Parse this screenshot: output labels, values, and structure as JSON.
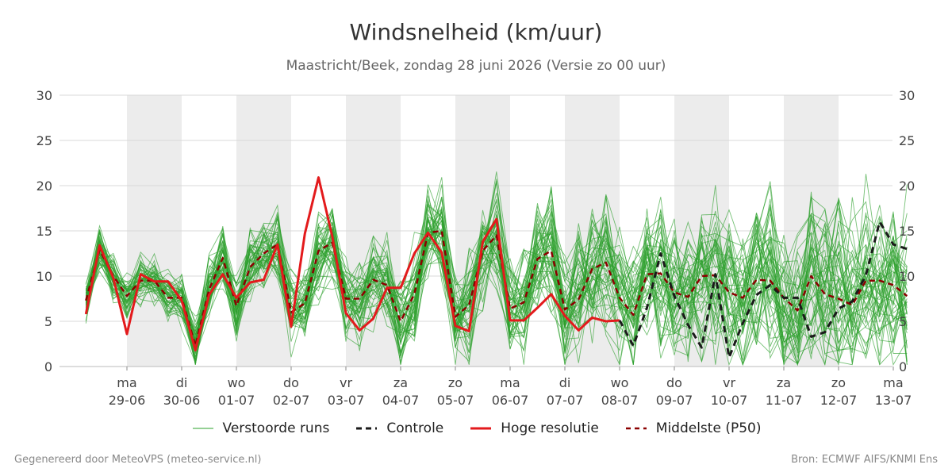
{
  "title": "Windsnelheid (km/uur)",
  "subtitle": "Maastricht/Beek, zondag 28 juni 2026 (Versie zo 00 uur)",
  "footer": {
    "left": "Gegenereerd door MeteoVPS (meteo-service.nl)",
    "right": "Bron: ECMWF AIFS/KNMI Ens"
  },
  "colors": {
    "ensemble": "#2ca02c",
    "control": "#1a1a1a",
    "hires": "#e31a1c",
    "median": "#8b0000",
    "weekend_band": "#ececec",
    "grid": "#d9d9d9"
  },
  "legend": [
    {
      "label": "Verstoorde runs",
      "style": "ensemble"
    },
    {
      "label": "Controle",
      "style": "control"
    },
    {
      "label": "Hoge resolutie",
      "style": "hires"
    },
    {
      "label": "Middelste (P50)",
      "style": "median"
    }
  ],
  "chart_data": {
    "type": "line",
    "xlim": [
      -0.75,
      14.5
    ],
    "ylim": [
      0,
      30
    ],
    "y_ticks": [
      0,
      5,
      10,
      15,
      20,
      25,
      30
    ],
    "x_ticks": [
      {
        "x": 0.0,
        "day": "ma",
        "date": "29-06"
      },
      {
        "x": 1.0,
        "day": "di",
        "date": "30-06"
      },
      {
        "x": 2.0,
        "day": "wo",
        "date": "01-07"
      },
      {
        "x": 3.0,
        "day": "do",
        "date": "02-07"
      },
      {
        "x": 4.0,
        "day": "vr",
        "date": "03-07"
      },
      {
        "x": 5.0,
        "day": "za",
        "date": "04-07"
      },
      {
        "x": 6.0,
        "day": "zo",
        "date": "05-07"
      },
      {
        "x": 7.0,
        "day": "ma",
        "date": "06-07"
      },
      {
        "x": 8.0,
        "day": "di",
        "date": "07-07"
      },
      {
        "x": 9.0,
        "day": "wo",
        "date": "08-07"
      },
      {
        "x": 10.0,
        "day": "do",
        "date": "09-07"
      },
      {
        "x": 11.0,
        "day": "vr",
        "date": "10-07"
      },
      {
        "x": 12.0,
        "day": "za",
        "date": "11-07"
      },
      {
        "x": 13.0,
        "day": "zo",
        "date": "12-07"
      },
      {
        "x": 14.0,
        "day": "ma",
        "date": "13-07"
      }
    ],
    "shaded_bands": [
      [
        0.0,
        1.0
      ],
      [
        2.0,
        3.0
      ],
      [
        4.0,
        5.0
      ],
      [
        6.0,
        7.0
      ],
      [
        8.0,
        9.0
      ],
      [
        10.0,
        11.0
      ],
      [
        12.0,
        13.0
      ]
    ],
    "series": [
      {
        "name": "Hoge resolutie",
        "style": "hires",
        "x": [
          -0.75,
          -0.5,
          -0.25,
          0.0,
          0.25,
          0.5,
          0.75,
          1.0,
          1.25,
          1.5,
          1.75,
          2.0,
          2.25,
          2.5,
          2.75,
          3.0,
          3.25,
          3.5,
          3.75,
          4.0,
          4.25,
          4.5,
          4.75,
          5.0,
          5.25,
          5.5,
          5.75,
          6.0,
          6.25,
          6.5,
          6.75,
          7.0,
          7.25,
          7.5,
          7.75,
          8.0,
          8.25,
          8.5,
          8.75,
          9.0
        ],
        "y": [
          5.8,
          13.4,
          9.8,
          3.6,
          10.2,
          9.4,
          9.4,
          7.3,
          1.8,
          7.9,
          10.2,
          7.6,
          9.3,
          9.6,
          13.5,
          4.4,
          14.7,
          20.9,
          14.4,
          5.9,
          4.0,
          5.3,
          8.7,
          8.7,
          12.5,
          14.8,
          12.6,
          4.5,
          3.9,
          13.8,
          16.3,
          5.1,
          5.1,
          6.5,
          8.0,
          5.6,
          4.0,
          5.4,
          5.0,
          5.1
        ]
      },
      {
        "name": "Controle",
        "style": "control",
        "x": [
          9.0,
          9.25,
          9.5,
          9.75,
          10.0,
          10.25,
          10.5,
          10.75,
          11.0,
          11.25,
          11.5,
          11.75,
          12.0,
          12.25,
          12.5,
          12.75,
          13.0,
          13.25,
          13.5,
          13.75,
          14.0,
          14.25
        ],
        "y": [
          5.1,
          2.3,
          6.5,
          12.5,
          7.8,
          4.6,
          2.1,
          10.2,
          1.0,
          4.8,
          7.9,
          9.0,
          7.6,
          7.6,
          3.3,
          3.8,
          6.4,
          7.2,
          10.1,
          16.0,
          13.5,
          13.0
        ]
      },
      {
        "name": "Middelste (P50)",
        "style": "median",
        "x": [
          -0.75,
          -0.5,
          -0.25,
          0.0,
          0.25,
          0.5,
          0.75,
          1.0,
          1.25,
          1.5,
          1.75,
          2.0,
          2.25,
          2.5,
          2.75,
          3.0,
          3.25,
          3.5,
          3.75,
          4.0,
          4.25,
          4.5,
          4.75,
          5.0,
          5.25,
          5.5,
          5.75,
          6.0,
          6.25,
          6.5,
          6.75,
          7.0,
          7.25,
          7.5,
          7.75,
          8.0,
          8.25,
          8.5,
          8.75,
          9.0,
          9.25,
          9.5,
          9.75,
          10.0,
          10.25,
          10.5,
          10.75,
          11.0,
          11.25,
          11.5,
          11.75,
          12.0,
          12.25,
          12.5,
          12.75,
          13.0,
          13.25,
          13.5,
          13.75,
          14.0,
          14.25
        ],
        "y": [
          7.3,
          12.9,
          10.0,
          7.8,
          9.5,
          9.5,
          7.6,
          7.6,
          2.3,
          8.5,
          12.0,
          6.7,
          11.0,
          12.5,
          13.5,
          6.0,
          7.0,
          12.8,
          13.7,
          7.5,
          7.5,
          9.6,
          9.0,
          5.0,
          8.0,
          14.8,
          15.0,
          5.5,
          6.8,
          12.8,
          14.5,
          6.4,
          7.1,
          11.9,
          12.8,
          6.3,
          7.4,
          10.8,
          11.5,
          7.6,
          5.7,
          10.2,
          10.3,
          8.2,
          7.7,
          10.0,
          10.1,
          8.2,
          7.6,
          9.6,
          9.5,
          7.6,
          6.2,
          10.0,
          8.0,
          7.5,
          6.8,
          9.5,
          9.5,
          9.0,
          7.8
        ]
      }
    ],
    "ensemble_members": 50
  }
}
